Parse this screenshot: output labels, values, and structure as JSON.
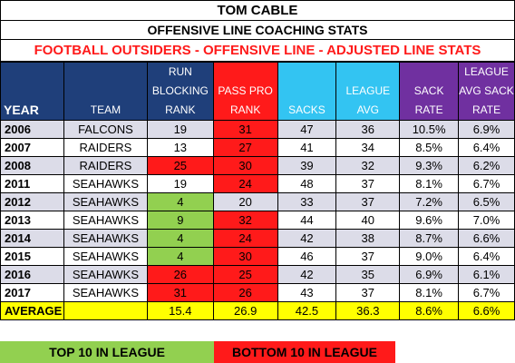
{
  "title": "TOM CABLE",
  "subtitle": "OFFENSIVE LINE COACHING STATS",
  "section_title": "FOOTBALL OUTSIDERS - OFFENSIVE LINE - ADJUSTED LINE STATS",
  "headers": {
    "year": "YEAR",
    "team": "TEAM",
    "run_blocking": "RUN BLOCKING RANK",
    "pass_pro": "PASS PRO RANK",
    "sacks": "SACKS",
    "league_avg": "LEAGUE AVG",
    "sack_rate": "SACK RATE",
    "league_avg_sack_rate": "LEAGUE AVG SACK RATE"
  },
  "rows": [
    {
      "year": "2006",
      "team": "FALCONS",
      "run": "19",
      "pass": "31",
      "sacks": "47",
      "league_avg": "36",
      "sack_rate": "10.5%",
      "league_sack_rate": "6.9%",
      "run_color": "none",
      "pass_color": "red"
    },
    {
      "year": "2007",
      "team": "RAIDERS",
      "run": "13",
      "pass": "27",
      "sacks": "41",
      "league_avg": "34",
      "sack_rate": "8.5%",
      "league_sack_rate": "6.4%",
      "run_color": "none",
      "pass_color": "red"
    },
    {
      "year": "2008",
      "team": "RAIDERS",
      "run": "25",
      "pass": "30",
      "sacks": "39",
      "league_avg": "32",
      "sack_rate": "9.3%",
      "league_sack_rate": "6.2%",
      "run_color": "red",
      "pass_color": "red"
    },
    {
      "year": "2011",
      "team": "SEAHAWKS",
      "run": "19",
      "pass": "24",
      "sacks": "48",
      "league_avg": "37",
      "sack_rate": "8.1%",
      "league_sack_rate": "6.7%",
      "run_color": "none",
      "pass_color": "red"
    },
    {
      "year": "2012",
      "team": "SEAHAWKS",
      "run": "4",
      "pass": "20",
      "sacks": "33",
      "league_avg": "37",
      "sack_rate": "7.2%",
      "league_sack_rate": "6.5%",
      "run_color": "green",
      "pass_color": "none"
    },
    {
      "year": "2013",
      "team": "SEAHAWKS",
      "run": "9",
      "pass": "32",
      "sacks": "44",
      "league_avg": "40",
      "sack_rate": "9.6%",
      "league_sack_rate": "7.0%",
      "run_color": "green",
      "pass_color": "red"
    },
    {
      "year": "2014",
      "team": "SEAHAWKS",
      "run": "4",
      "pass": "24",
      "sacks": "42",
      "league_avg": "38",
      "sack_rate": "8.7%",
      "league_sack_rate": "6.6%",
      "run_color": "green",
      "pass_color": "red"
    },
    {
      "year": "2015",
      "team": "SEAHAWKS",
      "run": "4",
      "pass": "30",
      "sacks": "46",
      "league_avg": "37",
      "sack_rate": "9.0%",
      "league_sack_rate": "6.4%",
      "run_color": "green",
      "pass_color": "red"
    },
    {
      "year": "2016",
      "team": "SEAHAWKS",
      "run": "26",
      "pass": "25",
      "sacks": "42",
      "league_avg": "35",
      "sack_rate": "6.9%",
      "league_sack_rate": "6.1%",
      "run_color": "red",
      "pass_color": "red"
    },
    {
      "year": "2017",
      "team": "SEAHAWKS",
      "run": "31",
      "pass": "26",
      "sacks": "43",
      "league_avg": "37",
      "sack_rate": "8.1%",
      "league_sack_rate": "6.7%",
      "run_color": "red",
      "pass_color": "red"
    }
  ],
  "average": {
    "label": "AVERAGE",
    "team": "",
    "run": "15.4",
    "pass": "26.9",
    "sacks": "42.5",
    "league_avg": "36.3",
    "sack_rate": "8.6%",
    "league_sack_rate": "6.6%"
  },
  "legend": {
    "top10": "TOP 10 IN LEAGUE",
    "bottom10": "BOTTOM 10 IN LEAGUE"
  },
  "colors": {
    "navy": "#1f3f7a",
    "red": "#ff1a1a",
    "cyan": "#33c4f2",
    "purple": "#7030a0",
    "green": "#92d050",
    "yellow": "#ffff00",
    "alt_row": "#dcdce8"
  }
}
